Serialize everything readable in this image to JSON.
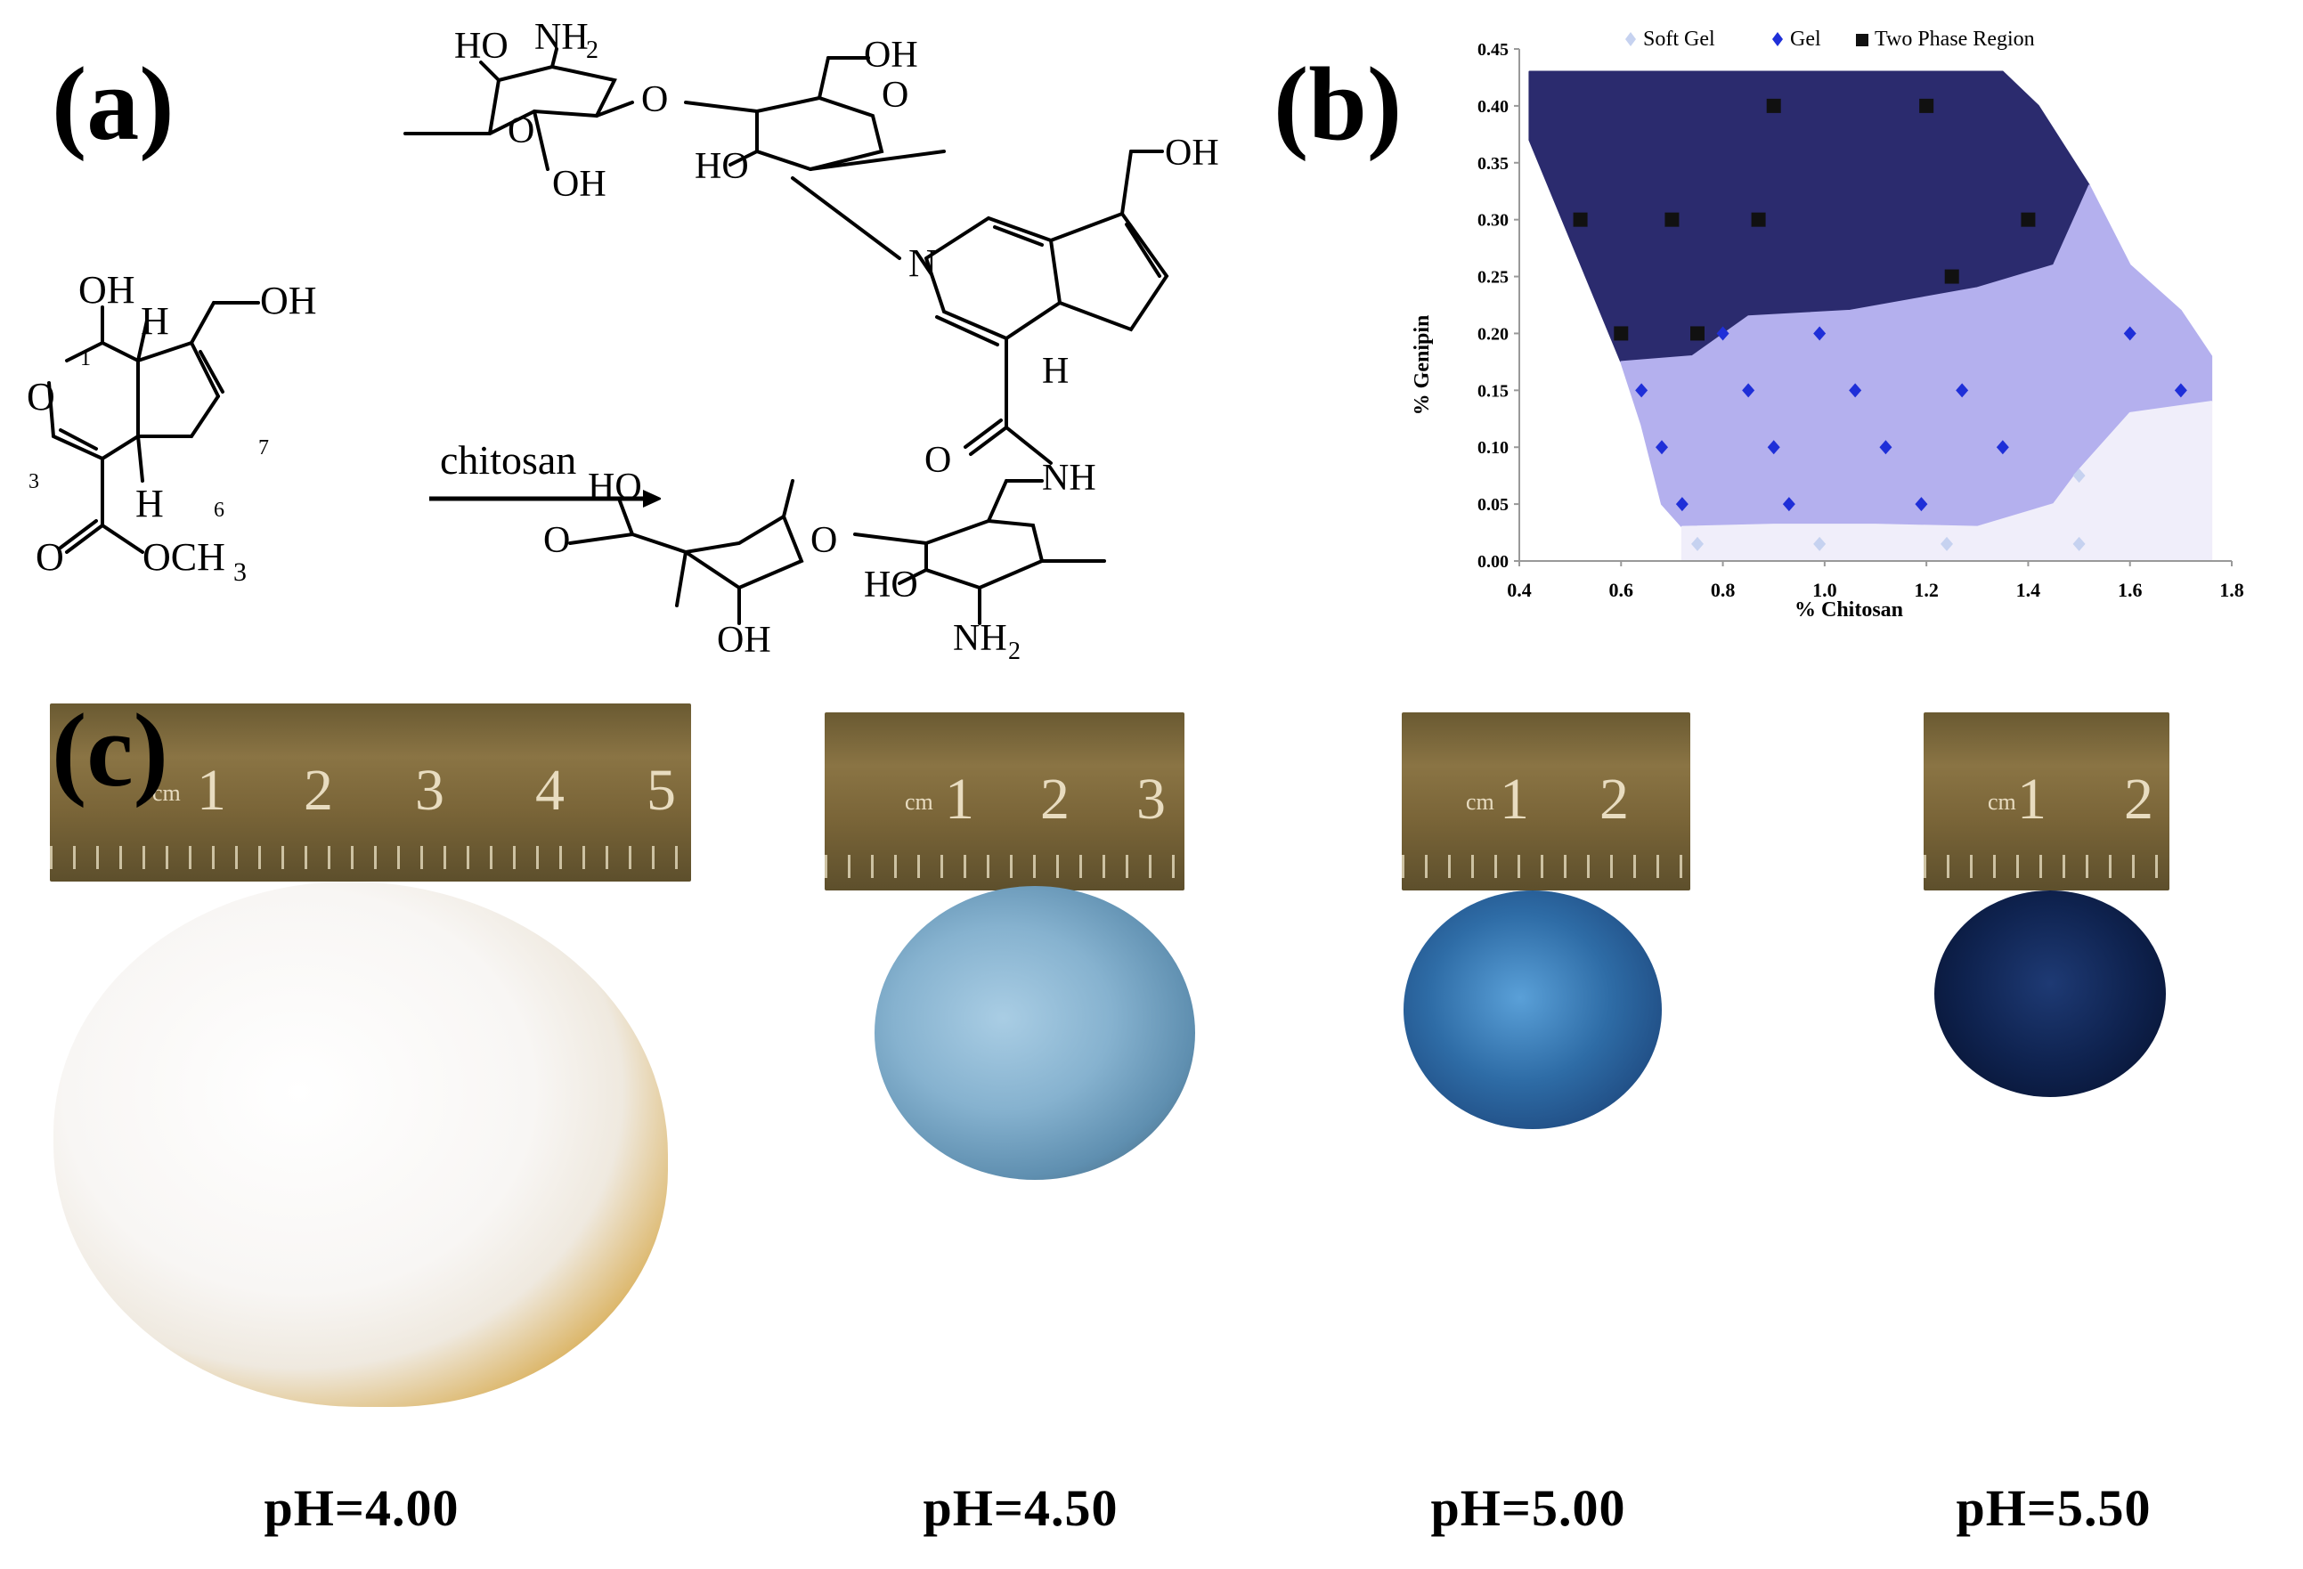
{
  "panels": {
    "a": {
      "label": "(a)",
      "arrow_reagent": "chitosan",
      "genipin": {
        "groups": [
          "OH",
          "OH",
          "H",
          "H",
          "O",
          "O",
          "OCH",
          "3"
        ],
        "locants": [
          "1",
          "3",
          "6",
          "7"
        ]
      },
      "product": {
        "groups": [
          "OH",
          "HO",
          "NH",
          "2",
          "O",
          "O",
          "HO",
          "O",
          "OH",
          "N",
          "OH",
          "H",
          "O",
          "NH",
          "OH",
          "HO",
          "O",
          "O",
          "HO",
          "OH",
          "NH",
          "2",
          "O"
        ]
      }
    },
    "b": {
      "label": "(b)"
    },
    "c": {
      "label": "(c)",
      "samples": [
        {
          "ph_label": "pH=4.00",
          "ruler_numbers": [
            "cm",
            "1",
            "2",
            "3",
            "4",
            "5"
          ]
        },
        {
          "ph_label": "pH=4.50",
          "ruler_numbers": [
            "cm",
            "1",
            "2",
            "3"
          ]
        },
        {
          "ph_label": "pH=5.00",
          "ruler_numbers": [
            "cm",
            "1",
            "2"
          ]
        },
        {
          "ph_label": "pH=5.50",
          "ruler_numbers": [
            "cm",
            "1",
            "2"
          ]
        }
      ]
    }
  },
  "chart_data": {
    "type": "scatter",
    "title": "",
    "xlabel": "% Chitosan",
    "ylabel": "% Genipin",
    "xlim": [
      0.4,
      1.8
    ],
    "ylim": [
      0.0,
      0.45
    ],
    "x_ticks": [
      "0.4",
      "0.6",
      "0.8",
      "1.0",
      "1.2",
      "1.4",
      "1.6",
      "1.8"
    ],
    "y_ticks": [
      "0.00",
      "0.05",
      "0.10",
      "0.15",
      "0.20",
      "0.25",
      "0.30",
      "0.35",
      "0.40",
      "0.45"
    ],
    "legend_position": "top",
    "regions": [
      {
        "name": "Two Phase Region",
        "color": "#2b2b6e",
        "boundary": [
          [
            0.42,
            0.43
          ],
          [
            1.35,
            0.43
          ],
          [
            1.42,
            0.4
          ],
          [
            1.52,
            0.33
          ],
          [
            1.45,
            0.26
          ],
          [
            1.3,
            0.24
          ],
          [
            1.05,
            0.22
          ],
          [
            0.85,
            0.215
          ],
          [
            0.74,
            0.18
          ],
          [
            0.6,
            0.175
          ],
          [
            0.42,
            0.37
          ]
        ]
      },
      {
        "name": "Gel",
        "color": "#b4b0ee",
        "boundary": [
          [
            0.6,
            0.175
          ],
          [
            0.74,
            0.18
          ],
          [
            0.85,
            0.215
          ],
          [
            1.05,
            0.22
          ],
          [
            1.3,
            0.24
          ],
          [
            1.45,
            0.26
          ],
          [
            1.52,
            0.33
          ],
          [
            1.6,
            0.26
          ],
          [
            1.7,
            0.22
          ],
          [
            1.76,
            0.18
          ],
          [
            1.76,
            0.14
          ],
          [
            1.6,
            0.13
          ],
          [
            1.5,
            0.08
          ],
          [
            1.45,
            0.05
          ],
          [
            1.3,
            0.03
          ],
          [
            1.1,
            0.032
          ],
          [
            0.9,
            0.032
          ],
          [
            0.72,
            0.03
          ],
          [
            0.68,
            0.05
          ],
          [
            0.64,
            0.12
          ]
        ]
      },
      {
        "name": "Soft Gel",
        "color": "#f0eefa",
        "boundary": [
          [
            0.72,
            0.03
          ],
          [
            0.9,
            0.032
          ],
          [
            1.1,
            0.032
          ],
          [
            1.3,
            0.03
          ],
          [
            1.45,
            0.05
          ],
          [
            1.5,
            0.08
          ],
          [
            1.6,
            0.13
          ],
          [
            1.76,
            0.14
          ],
          [
            1.76,
            0.0
          ],
          [
            0.72,
            0.0
          ]
        ]
      }
    ],
    "series": [
      {
        "name": "Soft Gel",
        "color": "#c6d2f0",
        "marker": "diamond",
        "x": [
          0.75,
          0.99,
          1.24,
          1.5,
          1.5
        ],
        "y": [
          0.015,
          0.015,
          0.015,
          0.015,
          0.075
        ]
      },
      {
        "name": "Gel",
        "color": "#1f2fd8",
        "marker": "diamond",
        "x": [
          0.8,
          0.99,
          1.6,
          0.64,
          0.85,
          1.06,
          1.27,
          1.7,
          0.68,
          0.9,
          1.12,
          1.35,
          0.72,
          0.93,
          1.19
        ],
        "y": [
          0.2,
          0.2,
          0.2,
          0.15,
          0.15,
          0.15,
          0.15,
          0.15,
          0.1,
          0.1,
          0.1,
          0.1,
          0.05,
          0.05,
          0.05
        ]
      },
      {
        "name": "Two Phase Region",
        "color": "#111111",
        "marker": "square",
        "x": [
          0.9,
          1.2,
          0.52,
          0.7,
          0.87,
          1.4,
          1.25,
          0.6,
          0.75
        ],
        "y": [
          0.4,
          0.4,
          0.3,
          0.3,
          0.3,
          0.3,
          0.25,
          0.2,
          0.2
        ]
      }
    ]
  }
}
